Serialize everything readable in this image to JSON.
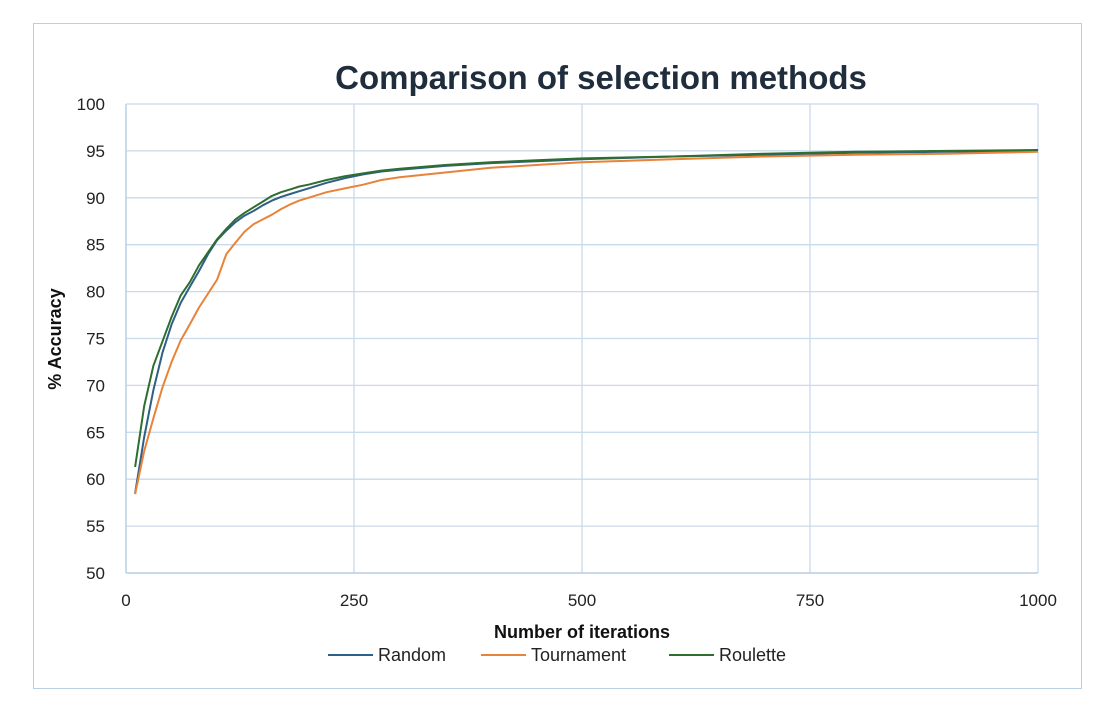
{
  "chart_data": {
    "type": "line",
    "title": "Comparison of selection methods",
    "xlabel": "Number of iterations",
    "ylabel": "% Accuracy",
    "xlim": [
      0,
      1000
    ],
    "ylim": [
      50,
      100
    ],
    "xticks": [
      0,
      250,
      500,
      750,
      1000
    ],
    "yticks": [
      50,
      55,
      60,
      65,
      70,
      75,
      80,
      85,
      90,
      95,
      100
    ],
    "grid": true,
    "legend": "bottom",
    "series": [
      {
        "name": "Random",
        "color": "#2e5f86",
        "x": [
          10,
          20,
          30,
          40,
          50,
          60,
          70,
          80,
          90,
          100,
          110,
          120,
          130,
          140,
          150,
          160,
          170,
          180,
          190,
          200,
          220,
          240,
          260,
          280,
          300,
          350,
          400,
          450,
          500,
          600,
          700,
          800,
          900,
          1000
        ],
        "y": [
          58.5,
          64.5,
          69.5,
          73.5,
          76.5,
          78.8,
          80.5,
          82.2,
          84.0,
          85.5,
          86.5,
          87.4,
          88.1,
          88.6,
          89.2,
          89.7,
          90.1,
          90.4,
          90.7,
          91.0,
          91.6,
          92.1,
          92.5,
          92.8,
          93.0,
          93.4,
          93.7,
          93.9,
          94.1,
          94.4,
          94.6,
          94.8,
          94.9,
          95.0
        ]
      },
      {
        "name": "Tournament",
        "color": "#e8833a",
        "x": [
          10,
          20,
          30,
          40,
          50,
          60,
          70,
          80,
          90,
          100,
          110,
          120,
          130,
          140,
          150,
          160,
          170,
          180,
          190,
          200,
          220,
          240,
          260,
          280,
          300,
          350,
          400,
          450,
          500,
          600,
          700,
          800,
          900,
          1000
        ],
        "y": [
          58.4,
          63.0,
          66.5,
          69.8,
          72.5,
          74.8,
          76.5,
          78.3,
          79.8,
          81.3,
          84.0,
          85.2,
          86.4,
          87.2,
          87.7,
          88.2,
          88.8,
          89.3,
          89.7,
          90.0,
          90.6,
          91.0,
          91.4,
          91.9,
          92.2,
          92.7,
          93.2,
          93.5,
          93.8,
          94.1,
          94.4,
          94.6,
          94.7,
          94.9
        ]
      },
      {
        "name": "Roulette",
        "color": "#2e6e2e",
        "x": [
          10,
          20,
          30,
          40,
          50,
          60,
          70,
          80,
          90,
          100,
          110,
          120,
          130,
          140,
          150,
          160,
          170,
          180,
          190,
          200,
          220,
          240,
          260,
          280,
          300,
          350,
          400,
          450,
          500,
          600,
          700,
          800,
          900,
          1000
        ],
        "y": [
          61.3,
          67.8,
          72.1,
          74.7,
          77.3,
          79.6,
          81.0,
          82.8,
          84.2,
          85.6,
          86.7,
          87.7,
          88.4,
          89.0,
          89.6,
          90.2,
          90.6,
          90.9,
          91.2,
          91.4,
          91.9,
          92.3,
          92.6,
          92.9,
          93.1,
          93.5,
          93.8,
          94.0,
          94.2,
          94.4,
          94.7,
          94.9,
          95.0,
          95.1
        ]
      }
    ]
  }
}
